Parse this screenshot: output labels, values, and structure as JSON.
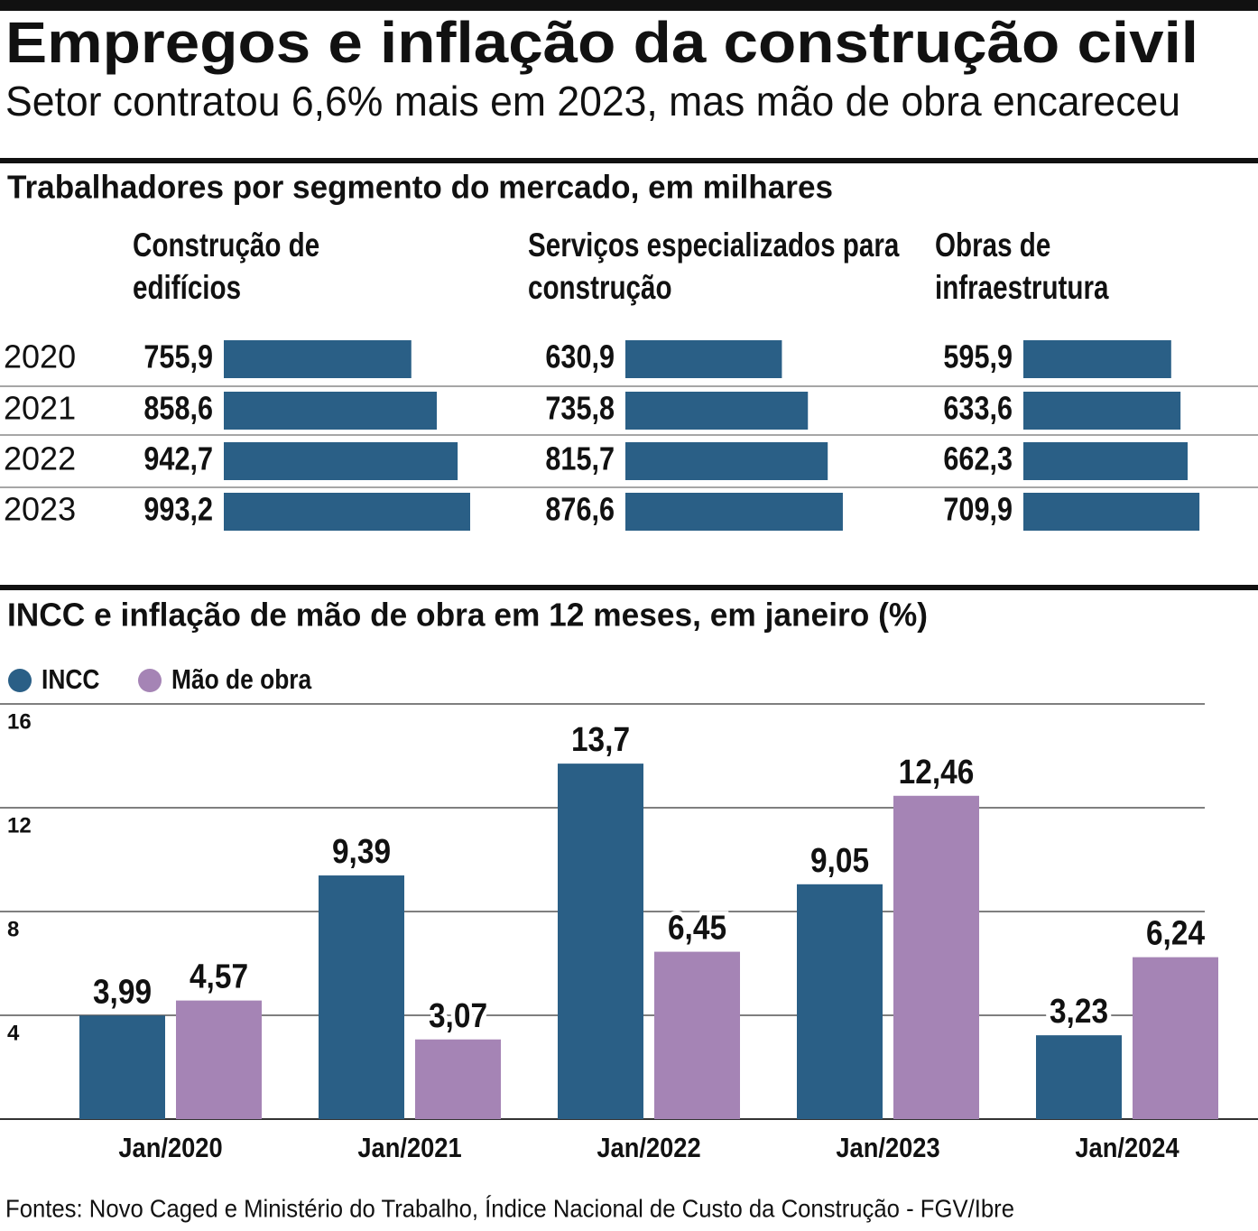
{
  "title": "Empregos e inflação da construção civil",
  "subtitle": "Setor contratou 6,6% mais em 2023, mas mão de obra encareceu",
  "source": "Fontes: Novo Caged e Ministério do Trabalho,  Índice Nacional de Custo da Construção - FGV/Ibre",
  "chart_data": [
    {
      "type": "barh",
      "title": "Trabalhadores por segmento do mercado, em milhares",
      "categories": [
        "2020",
        "2021",
        "2022",
        "2023"
      ],
      "series": [
        {
          "name": "Construção de edifícios",
          "color": "#2a5f86",
          "values": [
            755.9,
            858.6,
            942.7,
            993.2
          ],
          "value_labels": [
            "755,9",
            "858,6",
            "942,7",
            "993,2"
          ]
        },
        {
          "name": "Serviços especializados para construção",
          "color": "#2a5f86",
          "values": [
            630.9,
            735.8,
            815.7,
            876.6
          ],
          "value_labels": [
            "630,9",
            "735,8",
            "815,7",
            "876,6"
          ]
        },
        {
          "name": "Obras de infraestrutura",
          "color": "#2a5f86",
          "values": [
            595.9,
            633.6,
            662.3,
            709.9
          ],
          "value_labels": [
            "595,9",
            "633,6",
            "662,3",
            "709,9"
          ]
        }
      ]
    },
    {
      "type": "bar",
      "title": "INCC e inflação de mão de obra em 12 meses, em janeiro (%)",
      "categories": [
        "Jan/2020",
        "Jan/2021",
        "Jan/2022",
        "Jan/2023",
        "Jan/2024"
      ],
      "series": [
        {
          "name": "INCC",
          "color": "#2a5f86",
          "values": [
            3.99,
            9.39,
            13.7,
            9.05,
            3.23
          ],
          "value_labels": [
            "3,99",
            "9,39",
            "13,7",
            "9,05",
            "3,23"
          ]
        },
        {
          "name": "Mão de obra",
          "color": "#a584b5",
          "values": [
            4.57,
            3.07,
            6.45,
            12.46,
            6.24
          ],
          "value_labels": [
            "4,57",
            "3,07",
            "6,45",
            "12,46",
            "6,24"
          ]
        }
      ],
      "ylim": [
        0,
        16
      ],
      "yticks": [
        4,
        8,
        12,
        16
      ],
      "grid": true,
      "legend": "top-left"
    }
  ]
}
